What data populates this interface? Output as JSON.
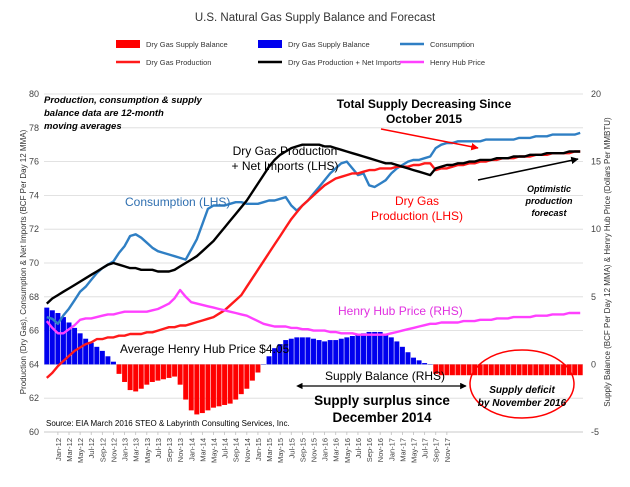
{
  "chart_data": {
    "type": "line+bar",
    "title": "U.S. Natural Gas Supply Balance and Forecast",
    "ylabel_left": "Production (Dry Gas), Consumption & Net Imports (BCF Per Day 12 MMA)",
    "ylabel_right": "Supply Balance (BCF Per Day 12 MMA) & Henry Hub Price (Dollars Per MMBTU)",
    "ylim_left": [
      60,
      80
    ],
    "ylim_right": [
      -5,
      20
    ],
    "yticks_left": [
      "60",
      "62",
      "64",
      "66",
      "68",
      "70",
      "72",
      "74",
      "76",
      "78",
      "80"
    ],
    "yticks_right": [
      "-5",
      "0",
      "5",
      "10",
      "15",
      "20"
    ],
    "x_labels": [
      "Jan-12",
      "Mar-12",
      "May-12",
      "Jul-12",
      "Sep-12",
      "Nov-12",
      "Jan-13",
      "Mar-13",
      "May-13",
      "Jul-13",
      "Sep-13",
      "Nov-13",
      "Jan-14",
      "Mar-14",
      "May-14",
      "Jul-14",
      "Sep-14",
      "Nov-14",
      "Jan-15",
      "Mar-15",
      "May-15",
      "Jul-15",
      "Sep-15",
      "Nov-15",
      "Jan-16",
      "Mar-16",
      "May-16",
      "Jul-16",
      "Sep-16",
      "Nov-16",
      "Jan-17",
      "Mar-17",
      "May-17",
      "Jul-17",
      "Sep-17",
      "Nov-17"
    ],
    "legend": [
      {
        "name": "Dry Gas Supply Balance",
        "color": "#ff0000",
        "kind": "bar"
      },
      {
        "name": "Dry Gas Supply Balance",
        "color": "#0000ee",
        "kind": "bar"
      },
      {
        "name": "Consumption",
        "color": "#2f7fc4",
        "kind": "line"
      },
      {
        "name": "Dry Gas Production",
        "color": "#ff1a1a",
        "kind": "line"
      },
      {
        "name": "Dry Gas Production + Net Imports",
        "color": "#000000",
        "kind": "line"
      },
      {
        "name": "Henry Hub Price",
        "color": "#ff40ff",
        "kind": "line"
      }
    ],
    "series": [
      {
        "key": "consumption",
        "axis": "left",
        "color": "#2f7fc4",
        "values": [
          66.8,
          66.7,
          66.4,
          66.9,
          67.3,
          67.8,
          68.3,
          68.6,
          69.0,
          69.4,
          69.7,
          69.9,
          70.1,
          70.6,
          71.0,
          71.6,
          71.7,
          71.5,
          71.2,
          70.9,
          70.7,
          70.6,
          70.5,
          70.4,
          70.3,
          70.2,
          70.8,
          71.4,
          72.3,
          73.2,
          73.4,
          73.4,
          73.4,
          73.5,
          73.6,
          73.6,
          73.5,
          73.5,
          73.5,
          73.6,
          73.7,
          73.7,
          73.8,
          73.9,
          73.4,
          73.1,
          73.4,
          73.7,
          74.1,
          74.5,
          74.9,
          75.3,
          75.6,
          75.9,
          76.0,
          75.6,
          75.2,
          75.3,
          74.6,
          74.5,
          74.7,
          74.9,
          75.3,
          75.6,
          75.8,
          76.0,
          76.1,
          76.1,
          76.2,
          76.3,
          76.8,
          77.0,
          77.1,
          77.1,
          77.2,
          77.2,
          77.2,
          77.2,
          77.2,
          77.3,
          77.3,
          77.3,
          77.3,
          77.3,
          77.3,
          77.4,
          77.4,
          77.4,
          77.5,
          77.5,
          77.5,
          77.6,
          77.6,
          77.6,
          77.6,
          77.6,
          77.7
        ]
      },
      {
        "key": "production",
        "axis": "left",
        "color": "#ff1a1a",
        "values": [
          63.2,
          63.5,
          63.9,
          64.2,
          64.5,
          64.8,
          65.0,
          65.2,
          65.3,
          65.5,
          65.5,
          65.6,
          65.6,
          65.7,
          65.7,
          65.8,
          65.8,
          65.8,
          65.9,
          65.9,
          66.0,
          66.1,
          66.2,
          66.2,
          66.3,
          66.3,
          66.4,
          66.5,
          66.6,
          66.7,
          66.8,
          67.0,
          67.2,
          67.5,
          67.8,
          68.1,
          68.6,
          69.1,
          69.6,
          70.1,
          70.6,
          71.1,
          71.6,
          72.1,
          72.6,
          73.0,
          73.4,
          73.7,
          74.0,
          74.3,
          74.6,
          74.8,
          75.0,
          75.1,
          75.2,
          75.3,
          75.3,
          75.4,
          75.5,
          75.5,
          75.6,
          75.6,
          75.6,
          75.7,
          75.7,
          75.7,
          75.8,
          75.8,
          75.9,
          75.9,
          75.5,
          75.6,
          75.6,
          75.7,
          75.8,
          75.8,
          75.9,
          75.9,
          76.0,
          76.0,
          76.1,
          76.1,
          76.2,
          76.2,
          76.2,
          76.3,
          76.3,
          76.3,
          76.4,
          76.4,
          76.4,
          76.5,
          76.5,
          76.5,
          76.5,
          76.6,
          76.6
        ]
      },
      {
        "key": "production_net_imports",
        "axis": "left",
        "color": "#000000",
        "values": [
          67.6,
          67.9,
          68.1,
          68.3,
          68.5,
          68.7,
          68.9,
          69.1,
          69.3,
          69.5,
          69.7,
          69.9,
          70.0,
          69.9,
          69.8,
          69.7,
          69.7,
          69.6,
          69.6,
          69.6,
          69.5,
          69.5,
          69.5,
          69.6,
          69.8,
          70.0,
          70.2,
          70.4,
          70.7,
          71.0,
          71.3,
          71.7,
          72.1,
          72.5,
          72.9,
          73.3,
          73.7,
          74.2,
          74.7,
          75.2,
          75.7,
          76.1,
          76.4,
          76.6,
          76.8,
          76.9,
          77.0,
          77.0,
          77.0,
          77.0,
          76.9,
          76.9,
          76.8,
          76.7,
          76.6,
          76.5,
          76.4,
          76.3,
          76.2,
          76.1,
          76.0,
          75.9,
          75.9,
          75.8,
          75.7,
          75.6,
          75.5,
          75.4,
          75.3,
          75.2,
          75.6,
          75.7,
          75.8,
          75.8,
          75.9,
          75.9,
          76.0,
          76.0,
          76.1,
          76.1,
          76.1,
          76.2,
          76.2,
          76.2,
          76.3,
          76.3,
          76.3,
          76.4,
          76.4,
          76.4,
          76.5,
          76.5,
          76.5,
          76.5,
          76.6,
          76.6,
          76.6
        ]
      },
      {
        "key": "henry_hub",
        "axis": "right",
        "color": "#ff40ff",
        "values": [
          3.2,
          2.7,
          2.3,
          2.3,
          2.6,
          2.9,
          3.3,
          3.4,
          3.4,
          3.5,
          3.6,
          3.7,
          3.7,
          3.8,
          3.9,
          3.9,
          3.9,
          3.9,
          3.9,
          4.0,
          4.1,
          4.3,
          4.5,
          4.9,
          5.5,
          5.0,
          4.6,
          4.5,
          4.4,
          4.3,
          4.2,
          4.1,
          4.0,
          3.9,
          3.8,
          3.7,
          3.6,
          3.4,
          3.2,
          3.0,
          2.9,
          2.8,
          2.8,
          2.8,
          2.7,
          2.7,
          2.6,
          2.6,
          2.5,
          2.5,
          2.5,
          2.4,
          2.4,
          2.3,
          2.3,
          2.3,
          2.2,
          2.2,
          2.2,
          2.2,
          2.2,
          2.2,
          2.3,
          2.4,
          2.5,
          2.6,
          2.7,
          2.8,
          2.9,
          3.0,
          3.0,
          3.1,
          3.1,
          3.1,
          3.1,
          3.2,
          3.2,
          3.2,
          3.3,
          3.3,
          3.3,
          3.4,
          3.4,
          3.4,
          3.5,
          3.5,
          3.5,
          3.5,
          3.6,
          3.6,
          3.6,
          3.7,
          3.7,
          3.7,
          3.8,
          3.8,
          3.8
        ]
      },
      {
        "key": "supply_balance",
        "axis": "right",
        "colors": {
          "positive": "#0000ee",
          "negative": "#ff0000"
        },
        "values": [
          4.2,
          4.0,
          3.8,
          3.5,
          3.1,
          2.7,
          2.3,
          1.9,
          1.6,
          1.3,
          1.0,
          0.6,
          0.2,
          -0.7,
          -1.3,
          -1.9,
          -2.0,
          -1.8,
          -1.5,
          -1.3,
          -1.2,
          -1.1,
          -1.0,
          -0.9,
          -1.5,
          -2.6,
          -3.4,
          -3.7,
          -3.6,
          -3.4,
          -3.2,
          -3.1,
          -3.0,
          -2.9,
          -2.6,
          -2.2,
          -1.8,
          -1.2,
          -0.6,
          0.0,
          0.6,
          1.2,
          1.5,
          1.8,
          1.9,
          2.0,
          2.0,
          2.0,
          1.9,
          1.8,
          1.7,
          1.8,
          1.8,
          1.9,
          2.0,
          2.1,
          2.2,
          2.3,
          2.4,
          2.4,
          2.4,
          2.2,
          2.0,
          1.7,
          1.3,
          0.9,
          0.5,
          0.3,
          0.1,
          0.0,
          -0.7,
          -0.8,
          -0.8,
          -0.8,
          -0.8,
          -0.8,
          -0.8,
          -0.8,
          -0.8,
          -0.8,
          -0.8,
          -0.8,
          -0.8,
          -0.8,
          -0.8,
          -0.8,
          -0.8,
          -0.8,
          -0.8,
          -0.8,
          -0.8,
          -0.8,
          -0.8,
          -0.8,
          -0.8,
          -0.8,
          -0.8
        ]
      }
    ],
    "annotations": {
      "note": [
        "Production, consumption & supply",
        "balance  data are 12-month",
        "moving averages"
      ],
      "total_supply": [
        "Total Supply Decreasing Since",
        "October 2015"
      ],
      "prod_net_imports": [
        "Dry Gas Production",
        "+ Net Imports (LHS)"
      ],
      "consumption": "Consumption (LHS)",
      "dry_gas_production": [
        "Dry Gas",
        "Production (LHS)"
      ],
      "optimistic": [
        "Optimistic",
        "production",
        "forecast"
      ],
      "henry_hub": "Henry Hub Price (RHS)",
      "avg_price": "Average Henry Hub Price $4.05",
      "supply_balance": "Supply Balance (RHS)",
      "surplus": [
        "Supply surplus since",
        "December 2014"
      ],
      "deficit": [
        "Supply deficit",
        "by November 2016"
      ],
      "source": "Source: EIA March 2016 STEO & Labyrinth Consulting Services, Inc."
    }
  }
}
